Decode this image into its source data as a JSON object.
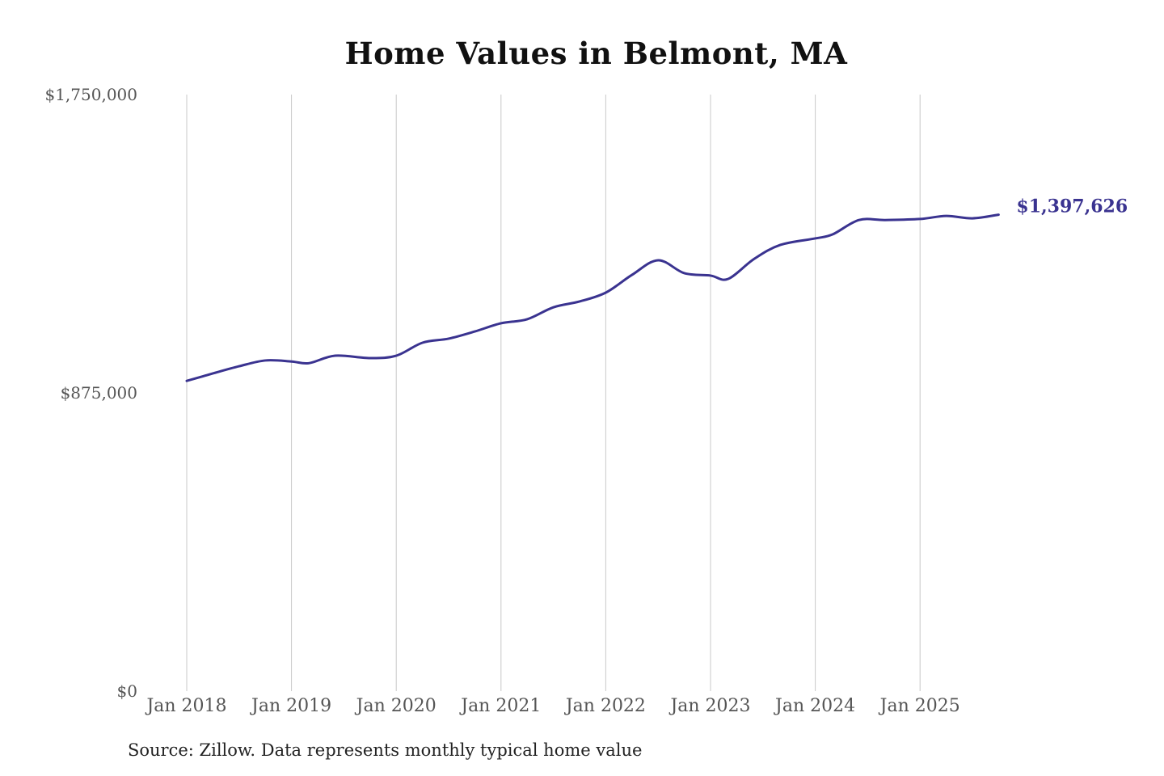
{
  "chart_data": {
    "type": "line",
    "title": "Home Values in Belmont, MA",
    "source": "Source: Zillow. Data represents monthly typical home value",
    "xlabel": "",
    "ylabel": "",
    "ylim": [
      0,
      1750000
    ],
    "y_ticks": [
      {
        "value": 0,
        "label": "$0"
      },
      {
        "value": 875000,
        "label": "$875,000"
      },
      {
        "value": 1750000,
        "label": "$1,750,000"
      }
    ],
    "x_ticks": [
      {
        "value": "2018-01",
        "label": "Jan 2018"
      },
      {
        "value": "2019-01",
        "label": "Jan 2019"
      },
      {
        "value": "2020-01",
        "label": "Jan 2020"
      },
      {
        "value": "2021-01",
        "label": "Jan 2021"
      },
      {
        "value": "2022-01",
        "label": "Jan 2022"
      },
      {
        "value": "2023-01",
        "label": "Jan 2023"
      },
      {
        "value": "2024-01",
        "label": "Jan 2024"
      },
      {
        "value": "2025-01",
        "label": "Jan 2025"
      }
    ],
    "grid": "vertical",
    "line_color": "#3a3390",
    "end_label": "$1,397,626",
    "series": [
      {
        "x": [
          "2018-01",
          "2018-04",
          "2018-07",
          "2018-10",
          "2019-01",
          "2019-03",
          "2019-06",
          "2019-10",
          "2020-01",
          "2020-04",
          "2020-07",
          "2020-10",
          "2021-01",
          "2021-04",
          "2021-07",
          "2021-10",
          "2022-01",
          "2022-04",
          "2022-07",
          "2022-10",
          "2023-01",
          "2023-03",
          "2023-06",
          "2023-09",
          "2024-01",
          "2024-03",
          "2024-06",
          "2024-09",
          "2025-01",
          "2025-04",
          "2025-07",
          "2025-10"
        ],
        "values": [
          910000,
          932000,
          953000,
          970000,
          967000,
          962000,
          984000,
          977000,
          984000,
          1022000,
          1034000,
          1055000,
          1079000,
          1091000,
          1126000,
          1143000,
          1169000,
          1221000,
          1264000,
          1226000,
          1219000,
          1209000,
          1268000,
          1309000,
          1328000,
          1340000,
          1382000,
          1382000,
          1385000,
          1394000,
          1387000,
          1397626
        ]
      }
    ]
  }
}
